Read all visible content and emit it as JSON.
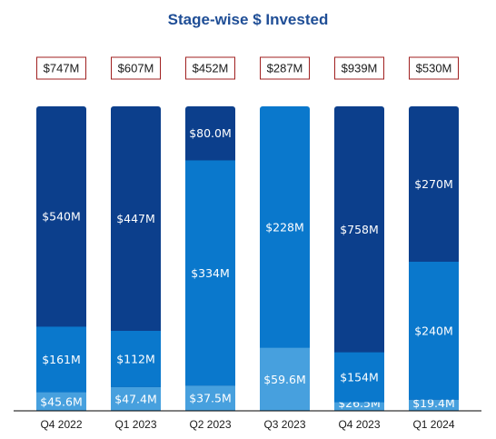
{
  "chart_data": {
    "type": "bar",
    "stacked": true,
    "title": "Stage-wise $ Invested",
    "categories": [
      "Q4 2022",
      "Q1 2023",
      "Q2 2023",
      "Q3 2023",
      "Q4 2023",
      "Q1 2024"
    ],
    "totals": [
      747,
      607,
      452,
      287,
      939,
      530
    ],
    "total_labels": [
      "$747M",
      "$607M",
      "$452M",
      "$287M",
      "$939M",
      "$530M"
    ],
    "series": [
      {
        "values": [
          45.6,
          47.4,
          37.5,
          59.6,
          26.5,
          19.4
        ],
        "labels": [
          "$45.6M",
          "$47.4M",
          "$37.5M",
          "$59.6M",
          "$26.5M",
          "$19.4M"
        ]
      },
      {
        "values": [
          161,
          112,
          334,
          228,
          154,
          240
        ],
        "labels": [
          "$161M",
          "$112M",
          "$334M",
          "$228M",
          "$154M",
          "$240M"
        ]
      },
      {
        "values": [
          540,
          447,
          80.0,
          0,
          758,
          270
        ],
        "labels": [
          "$540M",
          "$447M",
          "$80.0M",
          "",
          "$758M",
          "$270M"
        ]
      }
    ],
    "normalized": true,
    "colors": {
      "title": "#1f4e96",
      "bottom_series": "#47a0de",
      "middle_series": "#0a78cc",
      "top_series": "#0c3f8c",
      "total_box_border": "#a02020"
    }
  }
}
